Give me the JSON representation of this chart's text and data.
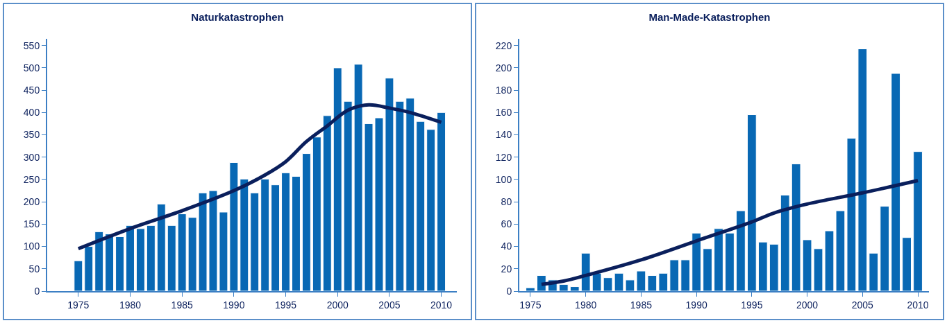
{
  "chart_data": [
    {
      "type": "bar",
      "title": "Naturkatastrophen",
      "x": [
        1975,
        1976,
        1977,
        1978,
        1979,
        1980,
        1981,
        1982,
        1983,
        1984,
        1985,
        1986,
        1987,
        1988,
        1989,
        1990,
        1991,
        1992,
        1993,
        1994,
        1995,
        1996,
        1997,
        1998,
        1999,
        2000,
        2001,
        2002,
        2003,
        2004,
        2005,
        2006,
        2007,
        2008,
        2009,
        2010
      ],
      "series": [
        {
          "color": "#0868b4",
          "values": [
            68,
            100,
            133,
            128,
            122,
            147,
            140,
            147,
            195,
            147,
            173,
            165,
            220,
            225,
            177,
            288,
            251,
            220,
            251,
            238,
            265,
            257,
            308,
            345,
            393,
            500,
            425,
            508,
            375,
            388,
            477,
            425,
            432,
            380,
            362,
            400
          ]
        },
        {
          "type": "line",
          "color": "#0a1f5c",
          "x": [
            1975,
            1980,
            1985,
            1990,
            1993,
            1995,
            1997,
            1999,
            2001,
            2003,
            2005,
            2007,
            2010
          ],
          "values": [
            95,
            140,
            180,
            225,
            260,
            290,
            335,
            370,
            405,
            417,
            410,
            400,
            378
          ]
        }
      ],
      "xlim": [
        1972,
        2011.5
      ],
      "xticks": [
        1975,
        1980,
        1985,
        1990,
        1995,
        2000,
        2005,
        2010
      ],
      "ylim": [
        0,
        565
      ],
      "yticks": [
        0,
        50,
        100,
        150,
        200,
        250,
        300,
        350,
        400,
        450,
        500,
        550
      ]
    },
    {
      "type": "bar",
      "title": "Man-Made-Katastrophen",
      "x": [
        1975,
        1976,
        1977,
        1978,
        1979,
        1980,
        1981,
        1982,
        1983,
        1984,
        1985,
        1986,
        1987,
        1988,
        1989,
        1990,
        1991,
        1992,
        1993,
        1994,
        1995,
        1996,
        1997,
        1998,
        1999,
        2000,
        2001,
        2002,
        2003,
        2004,
        2005,
        2006,
        2007,
        2008,
        2009,
        2010
      ],
      "series": [
        {
          "color": "#0868b4",
          "values": [
            3,
            14,
            10,
            6,
            4,
            34,
            16,
            12,
            16,
            10,
            18,
            14,
            16,
            28,
            28,
            52,
            38,
            56,
            52,
            72,
            158,
            44,
            42,
            86,
            114,
            46,
            38,
            54,
            72,
            137,
            217,
            34,
            76,
            195,
            48,
            125
          ]
        },
        {
          "type": "line",
          "color": "#0a1f5c",
          "x": [
            1976,
            1978,
            1980,
            1985,
            1990,
            1995,
            1997,
            2000,
            2005,
            2010
          ],
          "values": [
            6,
            9,
            14,
            28,
            45,
            62,
            70,
            78,
            88,
            99
          ]
        }
      ],
      "xlim": [
        1974,
        2011
      ],
      "xticks": [
        1975,
        1980,
        1985,
        1990,
        1995,
        2000,
        2005,
        2010
      ],
      "ylim": [
        0,
        226
      ],
      "yticks": [
        0,
        20,
        40,
        60,
        80,
        100,
        120,
        140,
        160,
        180,
        200,
        220
      ]
    }
  ]
}
